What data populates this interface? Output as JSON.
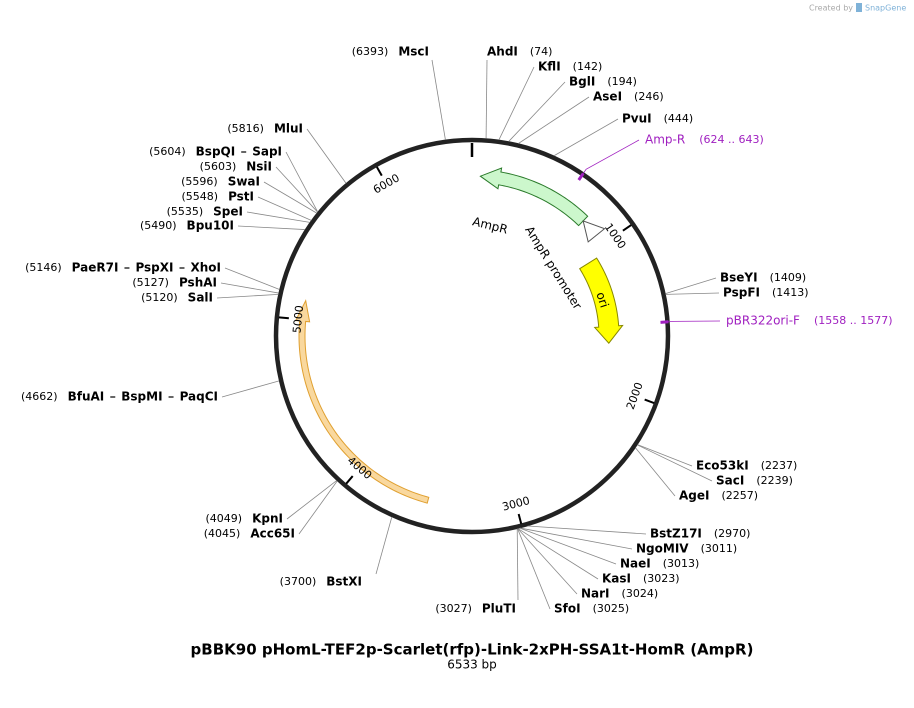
{
  "credit": {
    "prefix": "Created by",
    "brand": "SnapGene"
  },
  "map": {
    "title": "pBBK90 pHomL-TEF2p-Scarlet(rfp)-Link-2xPH-SSA1t-HomR (AmpR)",
    "length": "6533 bp",
    "ticks": [
      1000,
      2000,
      3000,
      4000,
      5000,
      6000
    ],
    "features": [
      {
        "label": "AmpR"
      },
      {
        "label": "AmpR promoter"
      },
      {
        "label": "ori"
      }
    ],
    "primers": [
      {
        "name": "Amp-R",
        "range": "(624 .. 643)"
      },
      {
        "name": "pBR322ori-F",
        "range": "(1558 .. 1577)"
      }
    ],
    "enzymes": [
      {
        "names": [
          "MscI"
        ],
        "position": "(6393)"
      },
      {
        "names": [
          "AhdI"
        ],
        "position": "(74)"
      },
      {
        "names": [
          "KflI"
        ],
        "position": "(142)"
      },
      {
        "names": [
          "BglI"
        ],
        "position": "(194)"
      },
      {
        "names": [
          "AseI"
        ],
        "position": "(246)"
      },
      {
        "names": [
          "PvuI"
        ],
        "position": "(444)"
      },
      {
        "names": [
          "BseYI"
        ],
        "position": "(1409)"
      },
      {
        "names": [
          "PspFI"
        ],
        "position": "(1413)"
      },
      {
        "names": [
          "Eco53kI"
        ],
        "position": "(2237)"
      },
      {
        "names": [
          "SacI"
        ],
        "position": "(2239)"
      },
      {
        "names": [
          "AgeI"
        ],
        "position": "(2257)"
      },
      {
        "names": [
          "BstZ17I"
        ],
        "position": "(2970)"
      },
      {
        "names": [
          "NgoMIV"
        ],
        "position": "(3011)"
      },
      {
        "names": [
          "NaeI"
        ],
        "position": "(3013)"
      },
      {
        "names": [
          "KasI"
        ],
        "position": "(3023)"
      },
      {
        "names": [
          "NarI"
        ],
        "position": "(3024)"
      },
      {
        "names": [
          "SfoI"
        ],
        "position": "(3025)"
      },
      {
        "names": [
          "PluTI"
        ],
        "position": "(3027)"
      },
      {
        "names": [
          "BstXI"
        ],
        "position": "(3700)"
      },
      {
        "names": [
          "KpnI"
        ],
        "position": "(4049)"
      },
      {
        "names": [
          "Acc65I"
        ],
        "position": "(4045)"
      },
      {
        "names": [
          "BfuAI",
          "BspMI",
          "PaqCI"
        ],
        "position": "(4662)"
      },
      {
        "names": [
          "PaeR7I",
          "PspXI",
          "XhoI"
        ],
        "position": "(5146)"
      },
      {
        "names": [
          "PshAI"
        ],
        "position": "(5127)"
      },
      {
        "names": [
          "SalI"
        ],
        "position": "(5120)"
      },
      {
        "names": [
          "MluI"
        ],
        "position": "(5816)"
      },
      {
        "names": [
          "BspQI",
          "SapI"
        ],
        "position": "(5604)"
      },
      {
        "names": [
          "NsiI"
        ],
        "position": "(5603)"
      },
      {
        "names": [
          "SwaI"
        ],
        "position": "(5596)"
      },
      {
        "names": [
          "PstI"
        ],
        "position": "(5548)"
      },
      {
        "names": [
          "SpeI"
        ],
        "position": "(5535)"
      },
      {
        "names": [
          "Bpu10I"
        ],
        "position": "(5490)"
      }
    ]
  }
}
